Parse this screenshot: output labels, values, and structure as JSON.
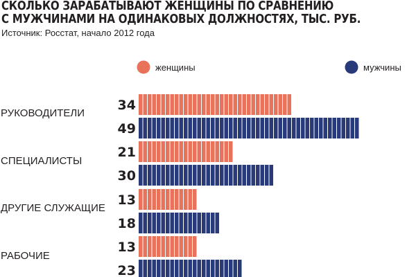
{
  "chart_data": {
    "type": "bar",
    "orientation": "horizontal",
    "title_lines": [
      "СКОЛЬКО ЗАРАБАТЫВАЮТ ЖЕНЩИНЫ ПО СРАВНЕНИЮ",
      "С МУЖЧИНАМИ НА ОДИНАКОВЫХ ДОЛЖНОСТЯХ, ТЫС. РУБ."
    ],
    "source": "Источник: Росстат, начало 2012 года",
    "categories": [
      "РУКОВОДИТЕЛИ",
      "СПЕЦИАЛИСТЫ",
      "ДРУГИЕ СЛУЖАЩИЕ",
      "РАБОЧИЕ"
    ],
    "series": [
      {
        "name": "женщины",
        "color": "#e8735a",
        "values": [
          34,
          21,
          13,
          13
        ]
      },
      {
        "name": "мужчины",
        "color": "#293a7a",
        "values": [
          49,
          30,
          18,
          23
        ]
      }
    ],
    "xlim": [
      0,
      50
    ],
    "grid": false,
    "legend_position": "top"
  }
}
